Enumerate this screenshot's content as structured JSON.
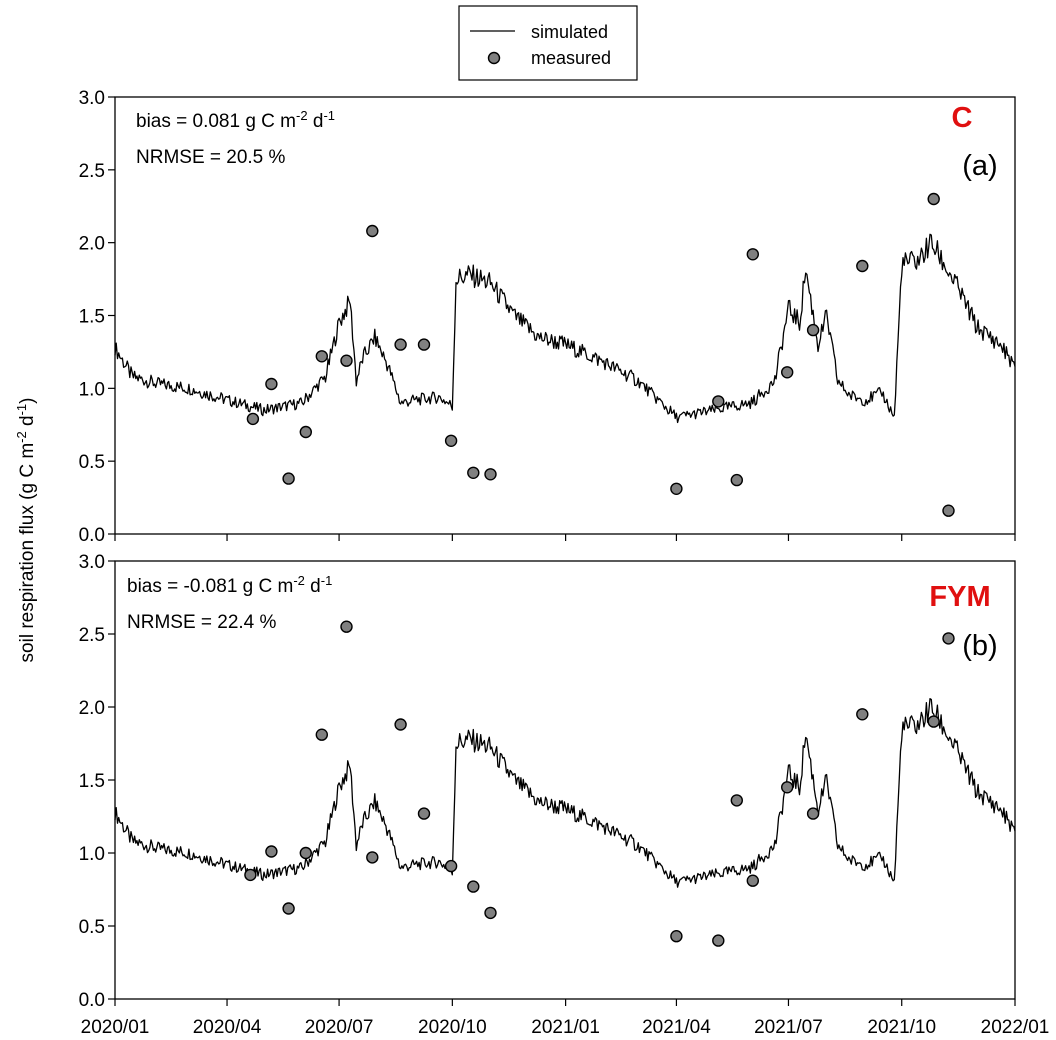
{
  "legend": [
    {
      "label": "simulated",
      "kind": "line"
    },
    {
      "label": "measured",
      "kind": "marker"
    }
  ],
  "ylabel_parts": {
    "base": "soil respiration flux (g C m",
    "sup1": "-2",
    "mid": " d",
    "sup2": "-1",
    "end": ")"
  },
  "x_tick_labels": [
    "2020/01",
    "2020/04",
    "2020/07",
    "2020/10",
    "2021/01",
    "2021/04",
    "2021/07",
    "2021/10",
    "2022/01"
  ],
  "y_tick_labels": [
    "0.0",
    "0.5",
    "1.0",
    "1.5",
    "2.0",
    "2.5",
    "3.0"
  ],
  "colors": {
    "treatment_label": "#e01010",
    "measured_fill": "#808080",
    "line": "#000000"
  },
  "chart_data": [
    {
      "type": "line+scatter",
      "panel_letter": "(a)",
      "treatment": "C",
      "bias_text": "bias = 0.081 g C m",
      "bias_sup1": "-2",
      "bias_mid": " d",
      "bias_sup2": "-1",
      "nrmse_text": "NRMSE = 20.5 %",
      "xlim": [
        "2020-01-01",
        "2022-01-01"
      ],
      "ylim": [
        0,
        3.0
      ],
      "simulated": {
        "name": "simulated",
        "x": [
          "2020-01-01",
          "2020-01-15",
          "2020-02-05",
          "2020-03-01",
          "2020-04-01",
          "2020-05-01",
          "2020-06-01",
          "2020-06-20",
          "2020-07-01",
          "2020-07-10",
          "2020-07-15",
          "2020-07-20",
          "2020-07-30",
          "2020-08-10",
          "2020-08-20",
          "2020-09-01",
          "2020-09-20",
          "2020-10-01",
          "2020-10-04",
          "2020-10-15",
          "2020-11-01",
          "2020-11-20",
          "2020-12-10",
          "2021-01-01",
          "2021-02-01",
          "2021-03-01",
          "2021-04-01",
          "2021-05-01",
          "2021-06-01",
          "2021-06-20",
          "2021-07-01",
          "2021-07-10",
          "2021-07-15",
          "2021-07-25",
          "2021-08-01",
          "2021-08-10",
          "2021-08-20",
          "2021-09-01",
          "2021-09-15",
          "2021-09-25",
          "2021-10-01",
          "2021-10-15",
          "2021-10-25",
          "2021-11-01",
          "2021-11-15",
          "2021-12-01",
          "2021-12-20",
          "2022-01-01"
        ],
        "y": [
          1.28,
          1.08,
          1.03,
          1.0,
          0.92,
          0.85,
          0.9,
          1.08,
          1.45,
          1.6,
          1.05,
          1.2,
          1.35,
          1.15,
          0.9,
          0.92,
          0.94,
          0.88,
          1.75,
          1.78,
          1.72,
          1.5,
          1.35,
          1.3,
          1.18,
          1.05,
          0.8,
          0.85,
          0.9,
          1.05,
          1.55,
          1.45,
          1.82,
          1.3,
          1.5,
          1.05,
          0.95,
          0.92,
          0.97,
          0.8,
          1.85,
          1.88,
          2.0,
          1.9,
          1.7,
          1.42,
          1.3,
          1.15
        ]
      },
      "measured": {
        "name": "measured",
        "x": [
          "2020-04-22",
          "2020-05-07",
          "2020-05-21",
          "2020-06-04",
          "2020-06-17",
          "2020-07-07",
          "2020-07-28",
          "2020-08-20",
          "2020-09-08",
          "2020-09-30",
          "2020-10-18",
          "2020-11-01",
          "2021-04-01",
          "2021-05-05",
          "2021-05-20",
          "2021-06-02",
          "2021-06-30",
          "2021-07-21",
          "2021-08-30",
          "2021-10-27",
          "2021-11-08"
        ],
        "y": [
          0.79,
          1.03,
          0.38,
          0.7,
          1.22,
          1.19,
          2.08,
          1.3,
          1.3,
          0.64,
          0.42,
          0.41,
          0.31,
          0.91,
          0.37,
          1.92,
          1.11,
          1.4,
          1.84,
          2.3,
          0.16
        ]
      }
    },
    {
      "type": "line+scatter",
      "panel_letter": "(b)",
      "treatment": "FYM",
      "bias_text": "bias = -0.081 g C m",
      "bias_sup1": "-2",
      "bias_mid": " d",
      "bias_sup2": "-1",
      "nrmse_text": "NRMSE = 22.4 %",
      "xlim": [
        "2020-01-01",
        "2022-01-01"
      ],
      "ylim": [
        0,
        3.0
      ],
      "simulated": {
        "name": "simulated",
        "x": [
          "2020-01-01",
          "2020-01-15",
          "2020-02-05",
          "2020-03-01",
          "2020-04-01",
          "2020-05-01",
          "2020-06-01",
          "2020-06-20",
          "2020-07-01",
          "2020-07-10",
          "2020-07-15",
          "2020-07-20",
          "2020-07-30",
          "2020-08-10",
          "2020-08-20",
          "2020-09-01",
          "2020-09-20",
          "2020-10-01",
          "2020-10-04",
          "2020-10-15",
          "2020-11-01",
          "2020-11-20",
          "2020-12-10",
          "2021-01-01",
          "2021-02-01",
          "2021-03-01",
          "2021-04-01",
          "2021-05-01",
          "2021-06-01",
          "2021-06-20",
          "2021-07-01",
          "2021-07-10",
          "2021-07-15",
          "2021-07-25",
          "2021-08-01",
          "2021-08-10",
          "2021-08-20",
          "2021-09-01",
          "2021-09-15",
          "2021-09-25",
          "2021-10-01",
          "2021-10-15",
          "2021-10-25",
          "2021-11-01",
          "2021-11-15",
          "2021-12-01",
          "2021-12-20",
          "2022-01-01"
        ],
        "y": [
          1.28,
          1.08,
          1.03,
          1.0,
          0.92,
          0.85,
          0.9,
          1.08,
          1.45,
          1.6,
          1.05,
          1.2,
          1.35,
          1.15,
          0.9,
          0.92,
          0.94,
          0.88,
          1.75,
          1.78,
          1.72,
          1.5,
          1.35,
          1.3,
          1.18,
          1.05,
          0.8,
          0.85,
          0.9,
          1.05,
          1.55,
          1.45,
          1.82,
          1.3,
          1.5,
          1.05,
          0.95,
          0.92,
          0.97,
          0.8,
          1.85,
          1.88,
          2.0,
          1.9,
          1.7,
          1.42,
          1.3,
          1.15
        ]
      },
      "measured": {
        "name": "measured",
        "x": [
          "2020-04-20",
          "2020-05-07",
          "2020-05-21",
          "2020-06-04",
          "2020-06-17",
          "2020-07-07",
          "2020-07-28",
          "2020-08-20",
          "2020-09-08",
          "2020-09-30",
          "2020-10-18",
          "2020-11-01",
          "2021-04-01",
          "2021-05-05",
          "2021-05-20",
          "2021-06-02",
          "2021-06-30",
          "2021-07-21",
          "2021-08-30",
          "2021-10-27",
          "2021-11-08"
        ],
        "y": [
          0.85,
          1.01,
          0.62,
          1.0,
          1.81,
          2.55,
          0.97,
          1.88,
          1.27,
          0.91,
          0.77,
          0.59,
          0.43,
          0.4,
          1.36,
          0.81,
          1.45,
          1.27,
          1.95,
          1.9,
          2.47
        ]
      }
    }
  ]
}
